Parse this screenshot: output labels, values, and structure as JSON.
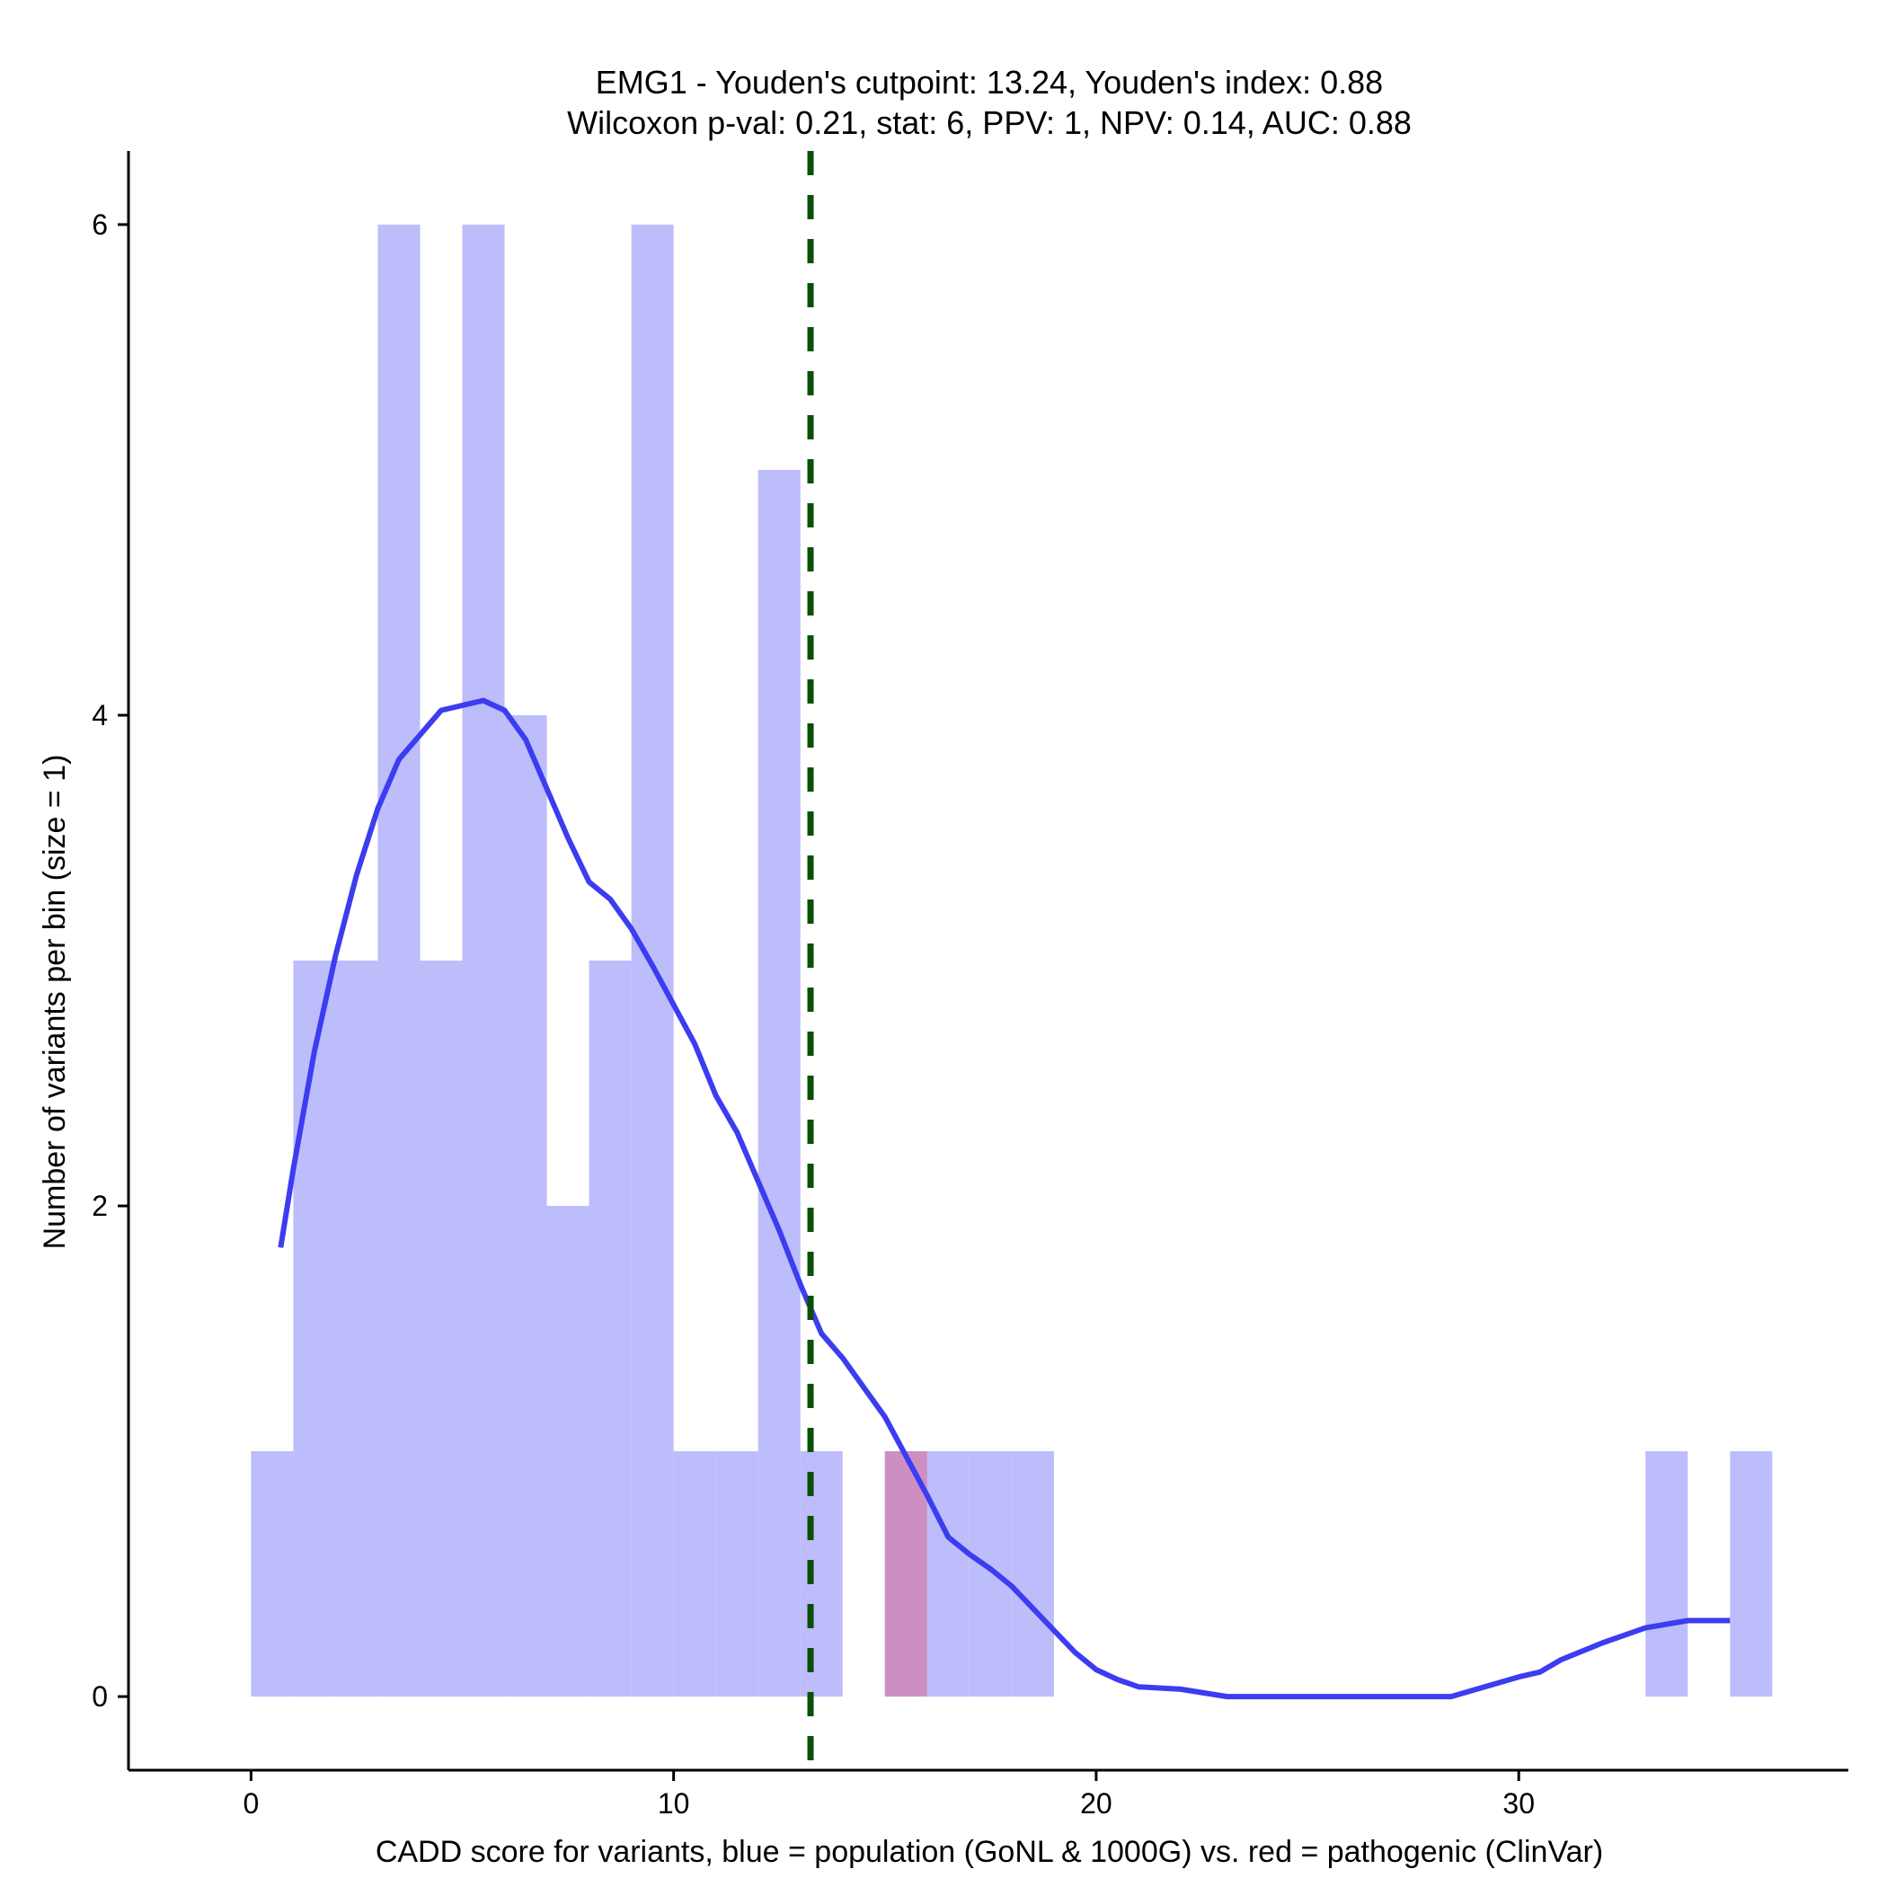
{
  "chart_data": {
    "type": "histogram",
    "title": "EMG1 - Youden's cutpoint: 13.24, Youden's index: 0.88",
    "subtitle": "Wilcoxon p-val: 0.21, stat: 6, PPV: 1, NPV: 0.14, AUC: 0.88",
    "xlabel": "CADD score for variants, blue = population (GoNL & 1000G) vs. red = pathogenic (ClinVar)",
    "ylabel": "Number of variants per bin (size = 1)",
    "xlim": [
      -2.9,
      37.8
    ],
    "ylim": [
      -0.3,
      6.3
    ],
    "x_ticks": [
      0,
      10,
      20,
      30
    ],
    "y_ticks": [
      0,
      2,
      4,
      6
    ],
    "grid": false,
    "bin_width": 1,
    "series": [
      {
        "name": "population (GoNL & 1000G)",
        "color": "#bdbdfb",
        "bins": [
          {
            "start": 0,
            "count": 1
          },
          {
            "start": 1,
            "count": 3
          },
          {
            "start": 2,
            "count": 3
          },
          {
            "start": 3,
            "count": 6
          },
          {
            "start": 4,
            "count": 3
          },
          {
            "start": 5,
            "count": 6
          },
          {
            "start": 6,
            "count": 4
          },
          {
            "start": 7,
            "count": 2
          },
          {
            "start": 8,
            "count": 3
          },
          {
            "start": 9,
            "count": 6
          },
          {
            "start": 10,
            "count": 1
          },
          {
            "start": 11,
            "count": 1
          },
          {
            "start": 12,
            "count": 5
          },
          {
            "start": 13,
            "count": 1
          },
          {
            "start": 15,
            "count": 1
          },
          {
            "start": 16,
            "count": 1
          },
          {
            "start": 17,
            "count": 1
          },
          {
            "start": 18,
            "count": 1
          },
          {
            "start": 33,
            "count": 1
          },
          {
            "start": 35,
            "count": 1
          }
        ]
      },
      {
        "name": "pathogenic (ClinVar)",
        "color": "#cd8fc2",
        "bins": [
          {
            "start": 15,
            "count": 1
          }
        ]
      }
    ],
    "density_curve": {
      "name": "population density",
      "color": "#3c3cf0",
      "x": [
        0.7,
        1.0,
        1.5,
        2.0,
        2.5,
        3.0,
        3.5,
        4.0,
        4.5,
        5.0,
        5.5,
        6.0,
        6.5,
        7.0,
        7.5,
        8.0,
        8.5,
        9.0,
        9.5,
        10.0,
        10.5,
        11.0,
        11.5,
        12.0,
        12.5,
        13.0,
        13.5,
        14.0,
        14.5,
        15.0,
        15.5,
        16.0,
        16.5,
        17.0,
        17.5,
        18.0,
        18.5,
        19.0,
        19.5,
        20.0,
        20.5,
        21.0,
        22.0,
        23.1,
        24.0,
        26.0,
        28.4,
        29.0,
        30.0,
        30.5,
        31.0,
        32.0,
        33.0,
        34.0,
        35.0
      ],
      "y": [
        1.83,
        2.15,
        2.63,
        3.02,
        3.35,
        3.62,
        3.82,
        3.92,
        4.02,
        4.04,
        4.06,
        4.02,
        3.9,
        3.7,
        3.5,
        3.32,
        3.25,
        3.13,
        2.98,
        2.82,
        2.66,
        2.45,
        2.3,
        2.1,
        1.9,
        1.68,
        1.48,
        1.38,
        1.26,
        1.14,
        0.98,
        0.82,
        0.65,
        0.58,
        0.52,
        0.45,
        0.36,
        0.27,
        0.18,
        0.11,
        0.07,
        0.04,
        0.03,
        0.0,
        0.0,
        0.0,
        0.0,
        0.03,
        0.08,
        0.1,
        0.15,
        0.22,
        0.28,
        0.31,
        0.31
      ]
    },
    "cutpoint": {
      "label": "Youden's cutpoint",
      "value": 13.24,
      "color": "#0a500a"
    }
  }
}
